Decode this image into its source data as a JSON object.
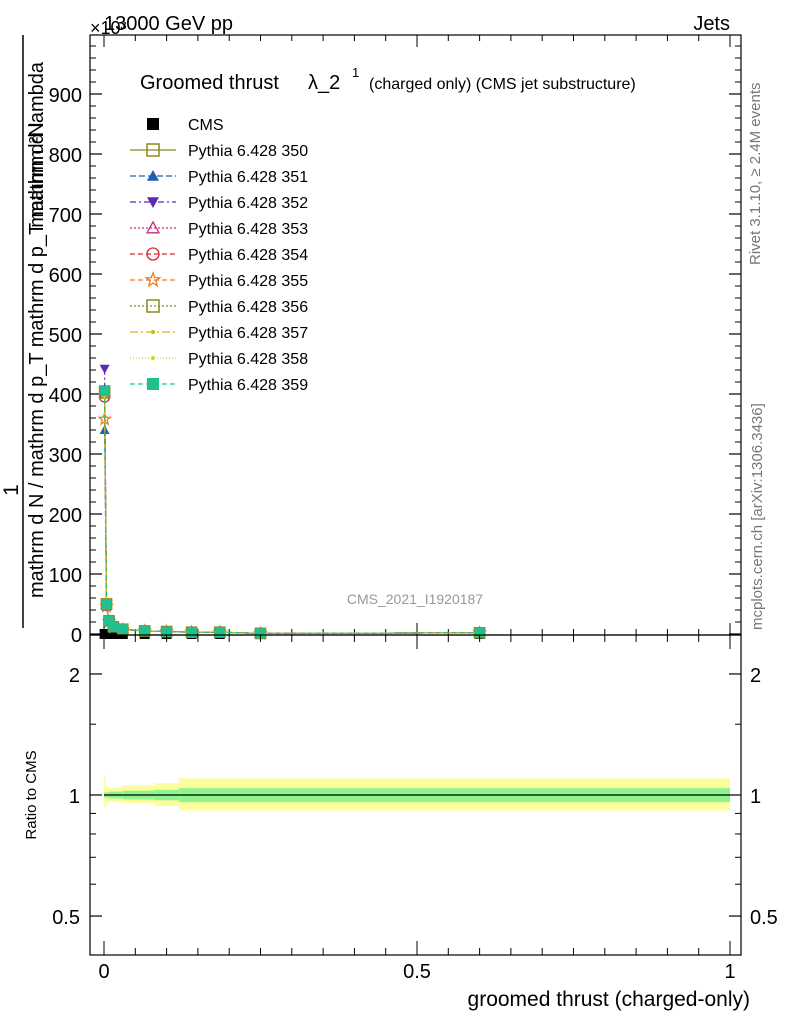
{
  "header": {
    "left": "13000 GeV pp",
    "right": "Jets",
    "exponent": "×10³"
  },
  "side": {
    "rivet": "Rivet 3.1.10, ≥ 2.4M events",
    "mcplots": "mcplots.cern.ch [arXiv:1306.3436]"
  },
  "chart_data": {
    "type": "line",
    "title": "Groomed thrust λ_2¹ (charged only) (CMS jet substructure)",
    "title_main": "Groomed thrust",
    "title_lambda": "λ_2",
    "title_sup": "1",
    "title_extra": "(charged only) (CMS jet substructure)",
    "watermark": "CMS_2021_I1920187",
    "ylabel_top": "1",
    "ylabel_num": "mathrm d²N",
    "ylabel_den": "mathrm d N / mathrm d p_T mathrm d p_T mathrm d lambda",
    "xlabel": "groomed thrust (charged-only)",
    "ratio_ylabel": "Ratio to CMS",
    "main": {
      "xlim": [
        0,
        1
      ],
      "ylim": [
        0,
        1000
      ],
      "yticks": [
        0,
        100,
        200,
        300,
        400,
        500,
        600,
        700,
        800,
        900
      ],
      "ytick_labels": [
        "0",
        "100",
        "200",
        "300",
        "400",
        "500",
        "600",
        "700",
        "800",
        "900"
      ]
    },
    "ratio": {
      "ylim": [
        0.4,
        2.5
      ],
      "log": true,
      "yticks": [
        0.5,
        1,
        2
      ],
      "ytick_labels": [
        "0.5",
        "1",
        "2"
      ],
      "xticks": [
        0,
        0.5,
        1
      ],
      "xtick_labels": [
        "0",
        "0.5",
        "1"
      ],
      "band_edges": [
        0,
        0.002,
        0.004,
        0.008,
        0.015,
        0.03,
        0.08,
        0.12,
        0.21,
        1.0
      ],
      "band_inner": [
        [
          0.985,
          1.015
        ],
        [
          0.985,
          1.015
        ],
        [
          0.985,
          1.015
        ],
        [
          0.98,
          1.02
        ],
        [
          0.98,
          1.02
        ],
        [
          0.975,
          1.025
        ],
        [
          0.97,
          1.03
        ],
        [
          0.96,
          1.04
        ],
        [
          0.96,
          1.04
        ]
      ],
      "band_outer": [
        [
          0.93,
          1.12
        ],
        [
          0.95,
          1.06
        ],
        [
          0.96,
          1.045
        ],
        [
          0.965,
          1.04
        ],
        [
          0.96,
          1.045
        ],
        [
          0.955,
          1.055
        ],
        [
          0.94,
          1.07
        ],
        [
          0.915,
          1.1
        ],
        [
          0.915,
          1.1
        ]
      ]
    },
    "x": [
      0.001,
      0.004,
      0.008,
      0.015,
      0.03,
      0.065,
      0.1,
      0.14,
      0.185,
      0.25,
      0.6
    ],
    "series": [
      {
        "name": "CMS",
        "color": "#000000",
        "marker": "square-filled",
        "dash": "",
        "values": [
          0,
          0,
          0,
          0,
          0,
          0,
          0,
          0,
          0,
          0,
          0
        ]
      },
      {
        "name": "Pythia 6.428 350",
        "color": "#8b8b1a",
        "marker": "square-open",
        "dash": "",
        "values": [
          405,
          50,
          22,
          12,
          8,
          5,
          4,
          3,
          3,
          1,
          2
        ]
      },
      {
        "name": "Pythia 6.428 351",
        "color": "#1f5fb0",
        "marker": "triangle-up-filled",
        "dash": "6,3",
        "values": [
          340,
          45,
          20,
          11,
          7,
          5,
          4,
          3,
          3,
          1,
          2
        ]
      },
      {
        "name": "Pythia 6.428 352",
        "color": "#5a2bb8",
        "marker": "triangle-down-filled",
        "dash": "6,3,2,3",
        "values": [
          442,
          52,
          23,
          12,
          8,
          5,
          4,
          3,
          3,
          1,
          2
        ]
      },
      {
        "name": "Pythia 6.428 353",
        "color": "#c0307a",
        "marker": "triangle-up-open",
        "dash": "2,2",
        "values": [
          400,
          49,
          22,
          12,
          8,
          5,
          4,
          3,
          3,
          1,
          2
        ]
      },
      {
        "name": "Pythia 6.428 354",
        "color": "#e0202a",
        "marker": "circle-open",
        "dash": "5,3",
        "values": [
          395,
          48,
          22,
          12,
          8,
          5,
          4,
          3,
          3,
          1,
          2
        ]
      },
      {
        "name": "Pythia 6.428 355",
        "color": "#f07a20",
        "marker": "star-open",
        "dash": "5,3",
        "values": [
          358,
          46,
          21,
          11,
          7,
          5,
          4,
          3,
          3,
          1,
          2
        ]
      },
      {
        "name": "Pythia 6.428 356",
        "color": "#8a8a20",
        "marker": "square-open",
        "dash": "2,2",
        "values": [
          402,
          50,
          22,
          12,
          8,
          5,
          4,
          3,
          3,
          1,
          2
        ]
      },
      {
        "name": "Pythia 6.428 357",
        "color": "#d4b800",
        "marker": "dot",
        "dash": "8,3,2,3",
        "values": [
          400,
          49,
          22,
          12,
          8,
          5,
          4,
          3,
          3,
          1,
          2
        ]
      },
      {
        "name": "Pythia 6.428 358",
        "color": "#c8d820",
        "marker": "dot",
        "dash": "1,2",
        "values": [
          398,
          49,
          22,
          12,
          8,
          5,
          4,
          3,
          3,
          1,
          2
        ]
      },
      {
        "name": "Pythia 6.428 359",
        "color": "#20c090",
        "marker": "square-filled",
        "dash": "5,3",
        "values": [
          405,
          50,
          22,
          12,
          8,
          5,
          4,
          3,
          3,
          1,
          2
        ]
      }
    ],
    "colors": {
      "band_outer": "#fdfd9e",
      "band_inner": "#8ef58e"
    }
  }
}
